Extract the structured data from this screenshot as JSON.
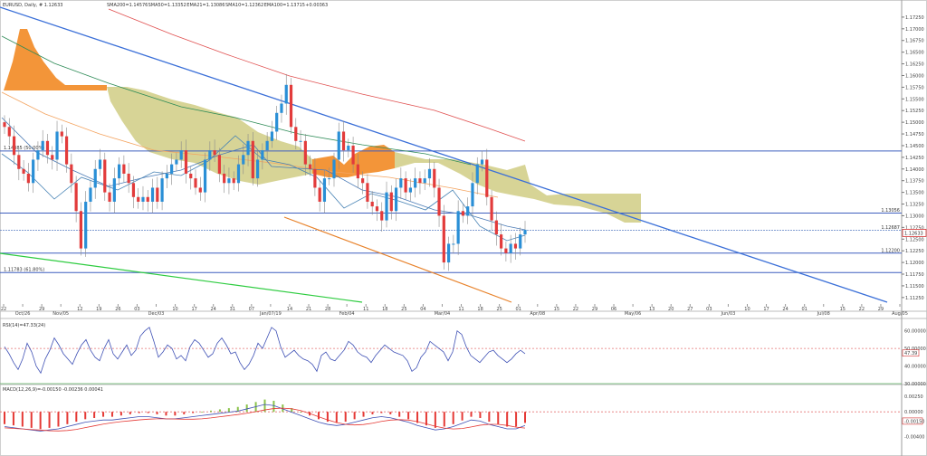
{
  "header": {
    "main": "EURUSD, Daily, # 1.12633",
    "ind": [
      {
        "text": "SMA200=1.14576",
        "color": "#e05050"
      },
      {
        "text": "SMA50=1.13352",
        "color": "#f4a460"
      },
      {
        "text": "EMA21=1.13086",
        "color": "#4a7ab5"
      },
      {
        "text": "SMA10=1.12362",
        "color": "#4682b4"
      },
      {
        "text": "EMA100=1.13715",
        "color": "#2e8b57"
      },
      {
        "text": "+0.00363",
        "color": "#8bc34a"
      }
    ]
  },
  "price_axis": {
    "ticks": [
      "1.17250",
      "1.17000",
      "1.16750",
      "1.16500",
      "1.16250",
      "1.16000",
      "1.15750",
      "1.15500",
      "1.15250",
      "1.15000",
      "1.14750",
      "1.14500",
      "1.14250",
      "1.14000",
      "1.13750",
      "1.13500",
      "1.13250",
      "1.13000",
      "1.12750",
      "1.12500",
      "1.12250",
      "1.12000",
      "1.11750",
      "1.11500",
      "1.11250"
    ],
    "current": "1.12633",
    "level_labels": [
      "1.13056",
      "1.12687",
      "1.12200"
    ]
  },
  "annotations": {
    "fib_high": "1.14385 (50.00%)",
    "fib_low": "1.11783 (61.80%)"
  },
  "x_axis": {
    "labels": [
      "22",
      "Oct/26",
      "29",
      "Nov/05",
      "12",
      "19",
      "26",
      "03",
      "Dec/03",
      "10",
      "17",
      "24",
      "31",
      "07",
      "Jan/07/19",
      "14",
      "21",
      "28",
      "Feb/04",
      "11",
      "18",
      "25",
      "04",
      "Mar/04",
      "11",
      "18",
      "25",
      "01",
      "Apr/08",
      "15",
      "22",
      "29",
      "06",
      "May/06",
      "13",
      "20",
      "27",
      "03",
      "Jun/03",
      "10",
      "17",
      "24",
      "01",
      "Jul/08",
      "15",
      "22",
      "29",
      "Aug/05"
    ]
  },
  "rsi": {
    "label": "RSI(14)=47.33(24)",
    "ticks": [
      "60.00000",
      "50.00000",
      "47.39",
      "40.00000",
      "30.00000"
    ]
  },
  "macd": {
    "label": "MACD(12,26,9)=-0.00150 -0.00236 0.00041",
    "ticks": [
      "0.00250",
      "0.00000",
      "-0.00150",
      "-0.00400"
    ]
  },
  "chart_data": [
    {
      "type": "line",
      "title": "EURUSD, Daily",
      "xlabel": "",
      "ylabel": "",
      "ylim": [
        1.11,
        1.175
      ],
      "candles_close": [
        1.149,
        1.147,
        1.143,
        1.14,
        1.139,
        1.137,
        1.142,
        1.144,
        1.146,
        1.143,
        1.142,
        1.148,
        1.147,
        1.141,
        1.137,
        1.131,
        1.123,
        1.133,
        1.136,
        1.14,
        1.142,
        1.135,
        1.133,
        1.138,
        1.141,
        1.139,
        1.137,
        1.134,
        1.133,
        1.134,
        1.133,
        1.136,
        1.133,
        1.138,
        1.139,
        1.141,
        1.142,
        1.144,
        1.139,
        1.138,
        1.136,
        1.135,
        1.142,
        1.144,
        1.143,
        1.139,
        1.137,
        1.138,
        1.137,
        1.141,
        1.143,
        1.146,
        1.138,
        1.142,
        1.144,
        1.146,
        1.148,
        1.152,
        1.154,
        1.158,
        1.149,
        1.146,
        1.146,
        1.141,
        1.14,
        1.136,
        1.133,
        1.138,
        1.138,
        1.142,
        1.148,
        1.144,
        1.145,
        1.141,
        1.138,
        1.137,
        1.133,
        1.132,
        1.131,
        1.129,
        1.135,
        1.131,
        1.136,
        1.138,
        1.135,
        1.136,
        1.138,
        1.137,
        1.138,
        1.14,
        1.136,
        1.13,
        1.12,
        1.124,
        1.124,
        1.131,
        1.13,
        1.132,
        1.137,
        1.141,
        1.142,
        1.134,
        1.129,
        1.126,
        1.123,
        1.122,
        1.124,
        1.123,
        1.126,
        1.127
      ],
      "series": [
        {
          "name": "SMA200",
          "values": [
            1.167,
            1.162,
            1.156,
            1.15,
            1.147
          ]
        },
        {
          "name": "SMA50",
          "values": [
            1.156,
            1.15,
            1.144,
            1.14,
            1.135,
            1.133
          ]
        },
        {
          "name": "EMA100",
          "values": [
            1.162,
            1.155,
            1.149,
            1.144,
            1.14,
            1.137
          ]
        },
        {
          "name": "EMA21",
          "values": [
            1.142,
            1.14,
            1.139,
            1.137,
            1.133,
            1.131
          ]
        },
        {
          "name": "SMA10",
          "values": [
            1.144,
            1.139,
            1.14,
            1.135,
            1.129,
            1.124
          ]
        }
      ],
      "levels": [
        1.14385,
        1.13056,
        1.12687,
        1.122,
        1.11783
      ]
    },
    {
      "type": "line",
      "title": "RSI(14)",
      "ylim": [
        30,
        65
      ],
      "series": [
        {
          "name": "RSI",
          "values": [
            51,
            47,
            42,
            38,
            44,
            53,
            48,
            40,
            36,
            44,
            49,
            56,
            52,
            47,
            44,
            41,
            47,
            52,
            55,
            49,
            45,
            43,
            50,
            55,
            47,
            44,
            48,
            52,
            46,
            49,
            57,
            60,
            62,
            54,
            45,
            48,
            52,
            50,
            44,
            46,
            43,
            51,
            55,
            53,
            49,
            45,
            47,
            53,
            56,
            52,
            47,
            48,
            42,
            38,
            41,
            46,
            53,
            50,
            56,
            62,
            60,
            51,
            45,
            47,
            49,
            46,
            44,
            43,
            41,
            37,
            46,
            48,
            44,
            43,
            46,
            49,
            54,
            52,
            48,
            46,
            45,
            42,
            46,
            49,
            52,
            50,
            48,
            47,
            46,
            43,
            37,
            39,
            45,
            48,
            54,
            52,
            50,
            48,
            43,
            48,
            60,
            58,
            51,
            46,
            44,
            42,
            45,
            48,
            49,
            46,
            44,
            42,
            44,
            47,
            49,
            47
          ]
        }
      ]
    },
    {
      "type": "bar",
      "title": "MACD(12,26,9)",
      "ylim": [
        -0.006,
        0.004
      ],
      "series": [
        {
          "name": "MACD",
          "values": [
            -0.002,
            -0.0022,
            -0.0024,
            -0.0026,
            -0.0028,
            -0.0026,
            -0.0024,
            -0.002,
            -0.0016,
            -0.0012,
            -0.001,
            -0.0008,
            -0.0008,
            -0.0006,
            -0.0004,
            -0.0002,
            -0.0002,
            -0.0004,
            -0.0006,
            -0.0006,
            -0.0004,
            -0.0002,
            0.0,
            0.0002,
            0.0004,
            0.0006,
            0.0008,
            0.0012,
            0.0016,
            0.002,
            0.0018,
            0.0012,
            0.0006,
            0.0,
            -0.0006,
            -0.0012,
            -0.0016,
            -0.0018,
            -0.0016,
            -0.0012,
            -0.0008,
            -0.0004,
            -0.0002,
            -0.0004,
            -0.0008,
            -0.0012,
            -0.0018,
            -0.0022,
            -0.0026,
            -0.0024,
            -0.002,
            -0.0014,
            -0.0008,
            -0.001,
            -0.0016,
            -0.002,
            -0.0024,
            -0.0024,
            -0.0018
          ]
        }
      ]
    }
  ]
}
